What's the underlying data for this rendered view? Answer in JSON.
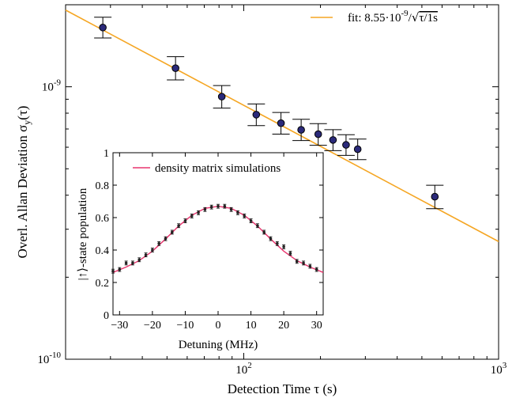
{
  "chart_data": [
    {
      "type": "scatter",
      "xscale": "log",
      "yscale": "log",
      "xlabel": "Detection Time τ (s)",
      "ylabel": "Overl. Allan Deviation σy(τ)",
      "xlim": [
        20,
        1000
      ],
      "ylim": [
        1e-10,
        2e-09
      ],
      "xticks": [
        100,
        1000
      ],
      "xtick_labels": [
        "10^2",
        "10^3"
      ],
      "yticks": [
        1e-10,
        1e-09
      ],
      "ytick_labels": [
        "10^-10",
        "10^-9"
      ],
      "legend": {
        "position": "top-right",
        "entries": [
          "fit: 8.55·10^-9/√(τ/1s)"
        ]
      },
      "series": [
        {
          "x": [
            28,
            54,
            82,
            112,
            140,
            168,
            196,
            224,
            252,
            280,
            562
          ],
          "y": [
            1.65e-09,
            1.17e-09,
            9.2e-10,
            7.9e-10,
            7.35e-10,
            6.95e-10,
            6.7e-10,
            6.38e-10,
            6.12e-10,
            5.9e-10,
            3.95e-10
          ],
          "err_low": [
            1.4e-10,
            1.1e-10,
            8.5e-11,
            7e-11,
            6.5e-11,
            6e-11,
            6e-11,
            5.5e-11,
            5.2e-11,
            5e-11,
            3.8e-11
          ],
          "err_high": [
            1.5e-10,
            1.2e-10,
            9e-11,
            7.5e-11,
            7e-11,
            6.5e-11,
            6.2e-11,
            5.8e-11,
            5.5e-11,
            5.3e-11,
            4e-11
          ]
        },
        {
          "type": "line",
          "amplitude": 8.55e-09,
          "exponent": -0.5,
          "x_range": [
            20,
            1000
          ],
          "color": "#f5a623"
        }
      ]
    },
    {
      "type": "scatter",
      "xlabel": "Detuning (MHz)",
      "ylabel": "|↑⟩-state population",
      "xlim": [
        -32,
        32
      ],
      "ylim": [
        0,
        1
      ],
      "xticks": [
        -30,
        -20,
        -10,
        0,
        10,
        20,
        30
      ],
      "xtick_labels": [
        "−30",
        "−20",
        "−10",
        "0",
        "10",
        "20",
        "30"
      ],
      "yticks": [
        0,
        0.2,
        0.4,
        0.6,
        0.8,
        1
      ],
      "ytick_labels": [
        "0",
        "0.2",
        "0.4",
        "0.6",
        "0.8",
        "1"
      ],
      "legend": {
        "position": "top",
        "entries": [
          "density matrix simulations"
        ]
      },
      "series": [
        {
          "x": [
            -32,
            -30,
            -28,
            -26,
            -24,
            -22,
            -20,
            -18,
            -16,
            -14,
            -12,
            -10,
            -8,
            -6,
            -4,
            -2,
            0,
            2,
            4,
            6,
            8,
            10,
            12,
            14,
            16,
            18,
            20,
            22,
            24,
            26,
            28,
            30
          ],
          "y": [
            0.27,
            0.28,
            0.32,
            0.32,
            0.34,
            0.37,
            0.4,
            0.44,
            0.47,
            0.51,
            0.55,
            0.58,
            0.61,
            0.63,
            0.65,
            0.665,
            0.67,
            0.67,
            0.65,
            0.63,
            0.61,
            0.58,
            0.55,
            0.51,
            0.47,
            0.44,
            0.42,
            0.38,
            0.33,
            0.32,
            0.3,
            0.28
          ],
          "err": 0.012
        },
        {
          "type": "line",
          "x": [
            -32,
            -28,
            -24,
            -20,
            -16,
            -12,
            -8,
            -4,
            0,
            4,
            8,
            12,
            16,
            20,
            24,
            28,
            32
          ],
          "y": [
            0.262,
            0.295,
            0.335,
            0.393,
            0.468,
            0.548,
            0.614,
            0.657,
            0.67,
            0.657,
            0.614,
            0.548,
            0.468,
            0.393,
            0.335,
            0.295,
            0.262
          ],
          "color": "#e8356e"
        }
      ]
    }
  ]
}
